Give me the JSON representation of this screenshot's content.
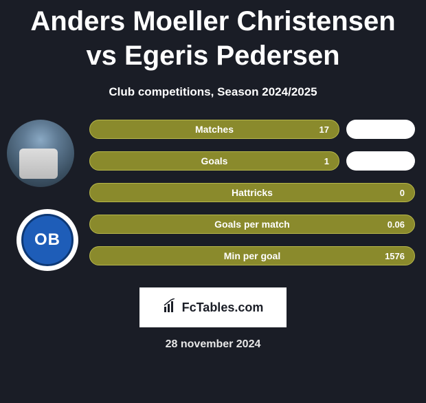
{
  "title": "Anders Moeller Christensen vs Egeris Pedersen",
  "subtitle": "Club competitions, Season 2024/2025",
  "club_abbrev": "OB",
  "colors": {
    "background": "#1a1d26",
    "olive": "#8a8a2c",
    "olive_border": "#b8b84a",
    "white": "#ffffff",
    "club_blue": "#1e5db8",
    "club_blue_dark": "#0d3875"
  },
  "stats": [
    {
      "label": "Matches",
      "value": "17",
      "has_right_pill": true
    },
    {
      "label": "Goals",
      "value": "1",
      "has_right_pill": true
    },
    {
      "label": "Hattricks",
      "value": "0",
      "has_right_pill": false
    },
    {
      "label": "Goals per match",
      "value": "0.06",
      "has_right_pill": false
    },
    {
      "label": "Min per goal",
      "value": "1576",
      "has_right_pill": false
    }
  ],
  "footer_brand": "FcTables.com",
  "date": "28 november 2024"
}
